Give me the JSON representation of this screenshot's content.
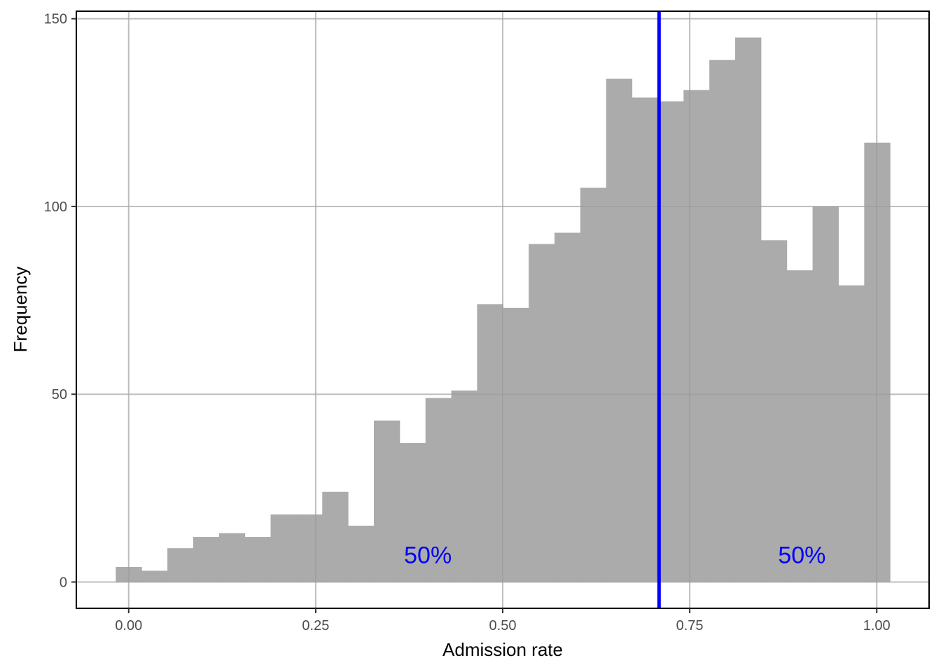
{
  "chart_data": {
    "type": "bar",
    "xlabel": "Admission rate",
    "ylabel": "Frequency",
    "xlim": [
      -0.07,
      1.07
    ],
    "ylim": [
      -7,
      152
    ],
    "x_ticks": [
      {
        "value": 0.0,
        "label": "0.00"
      },
      {
        "value": 0.25,
        "label": "0.25"
      },
      {
        "value": 0.5,
        "label": "0.50"
      },
      {
        "value": 0.75,
        "label": "0.75"
      },
      {
        "value": 1.0,
        "label": "1.00"
      }
    ],
    "y_ticks": [
      {
        "value": 0,
        "label": "0"
      },
      {
        "value": 50,
        "label": "50"
      },
      {
        "value": 100,
        "label": "100"
      },
      {
        "value": 150,
        "label": "150"
      }
    ],
    "bin_width": 0.0345,
    "bin_centers": [
      0.0,
      0.0345,
      0.069,
      0.1035,
      0.138,
      0.1725,
      0.207,
      0.2415,
      0.276,
      0.3105,
      0.345,
      0.3795,
      0.414,
      0.4485,
      0.483,
      0.5175,
      0.552,
      0.5865,
      0.621,
      0.6555,
      0.69,
      0.7245,
      0.759,
      0.7935,
      0.828,
      0.8625,
      0.897,
      0.9315,
      0.966,
      1.0005
    ],
    "values": [
      4,
      3,
      9,
      12,
      13,
      12,
      18,
      18,
      24,
      15,
      43,
      37,
      49,
      51,
      74,
      73,
      90,
      93,
      105,
      134,
      129,
      128,
      131,
      139,
      145,
      91,
      83,
      100,
      79,
      117
    ],
    "bar_color": "#ababab",
    "median_line": {
      "x": 0.709,
      "color": "#0000ff"
    },
    "annotations": [
      {
        "text": "50%",
        "x": 0.4,
        "y": 5,
        "color": "#0000ff"
      },
      {
        "text": "50%",
        "x": 0.9,
        "y": 5,
        "color": "#0000ff"
      }
    ],
    "grid": true,
    "legend": "none"
  }
}
